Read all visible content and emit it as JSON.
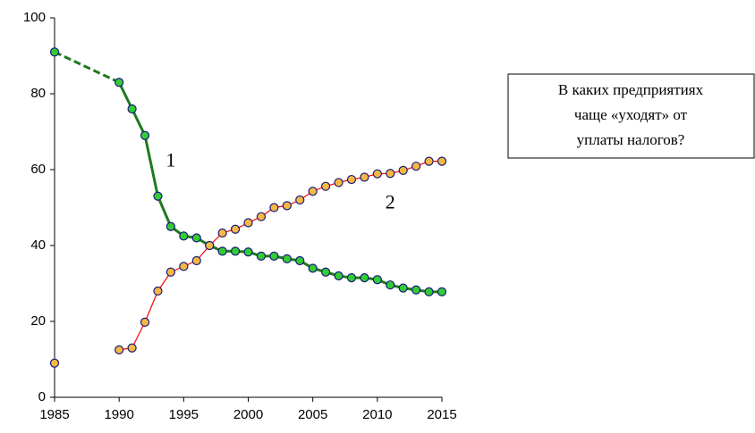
{
  "chart_data": {
    "type": "line",
    "x": [
      1985,
      1986,
      1987,
      1988,
      1989,
      1990,
      1991,
      1992,
      1993,
      1994,
      1995,
      1996,
      1997,
      1998,
      1999,
      2000,
      2001,
      2002,
      2003,
      2004,
      2005,
      2006,
      2007,
      2008,
      2009,
      2010,
      2011,
      2012,
      2013,
      2014,
      2015
    ],
    "series": [
      {
        "color": "#1e7a1e",
        "marker_color": "#33cc33",
        "line_width": 3,
        "dash_gaps": true,
        "values": [
          91,
          null,
          null,
          null,
          null,
          83,
          76,
          69,
          53,
          45,
          42.5,
          42,
          40,
          38.5,
          38.5,
          38.3,
          37.2,
          37.2,
          36.5,
          36,
          34,
          33,
          32,
          31.5,
          31.5,
          31,
          29.6,
          28.8,
          28.3,
          27.8,
          27.8
        ]
      },
      {
        "color": "#ff0000",
        "marker_color": "#f5b942",
        "line_width": 1.2,
        "dash_gaps": false,
        "values": [
          9,
          null,
          null,
          null,
          null,
          12.5,
          13,
          19.8,
          28,
          33,
          34.5,
          36,
          40,
          43.3,
          44.3,
          46,
          47.6,
          50,
          50.5,
          52,
          54.3,
          55.6,
          56.6,
          57.4,
          58,
          58.9,
          59,
          59.8,
          60.9,
          62.2,
          62.2
        ]
      }
    ],
    "xlim": [
      1985,
      2015
    ],
    "xticks": [
      1985,
      1990,
      1995,
      2000,
      2005,
      2010,
      2015
    ],
    "ylim": [
      0,
      100
    ],
    "yticks": [
      0,
      20,
      40,
      60,
      80,
      100
    ],
    "annotations": [
      {
        "text": "1",
        "x": 1994,
        "y": 62
      },
      {
        "text": "2",
        "x": 2011,
        "y": 51
      }
    ],
    "note_lines": [
      "В каких предприятиях",
      "чаще «уходят» от",
      "уплаты налогов?"
    ]
  }
}
